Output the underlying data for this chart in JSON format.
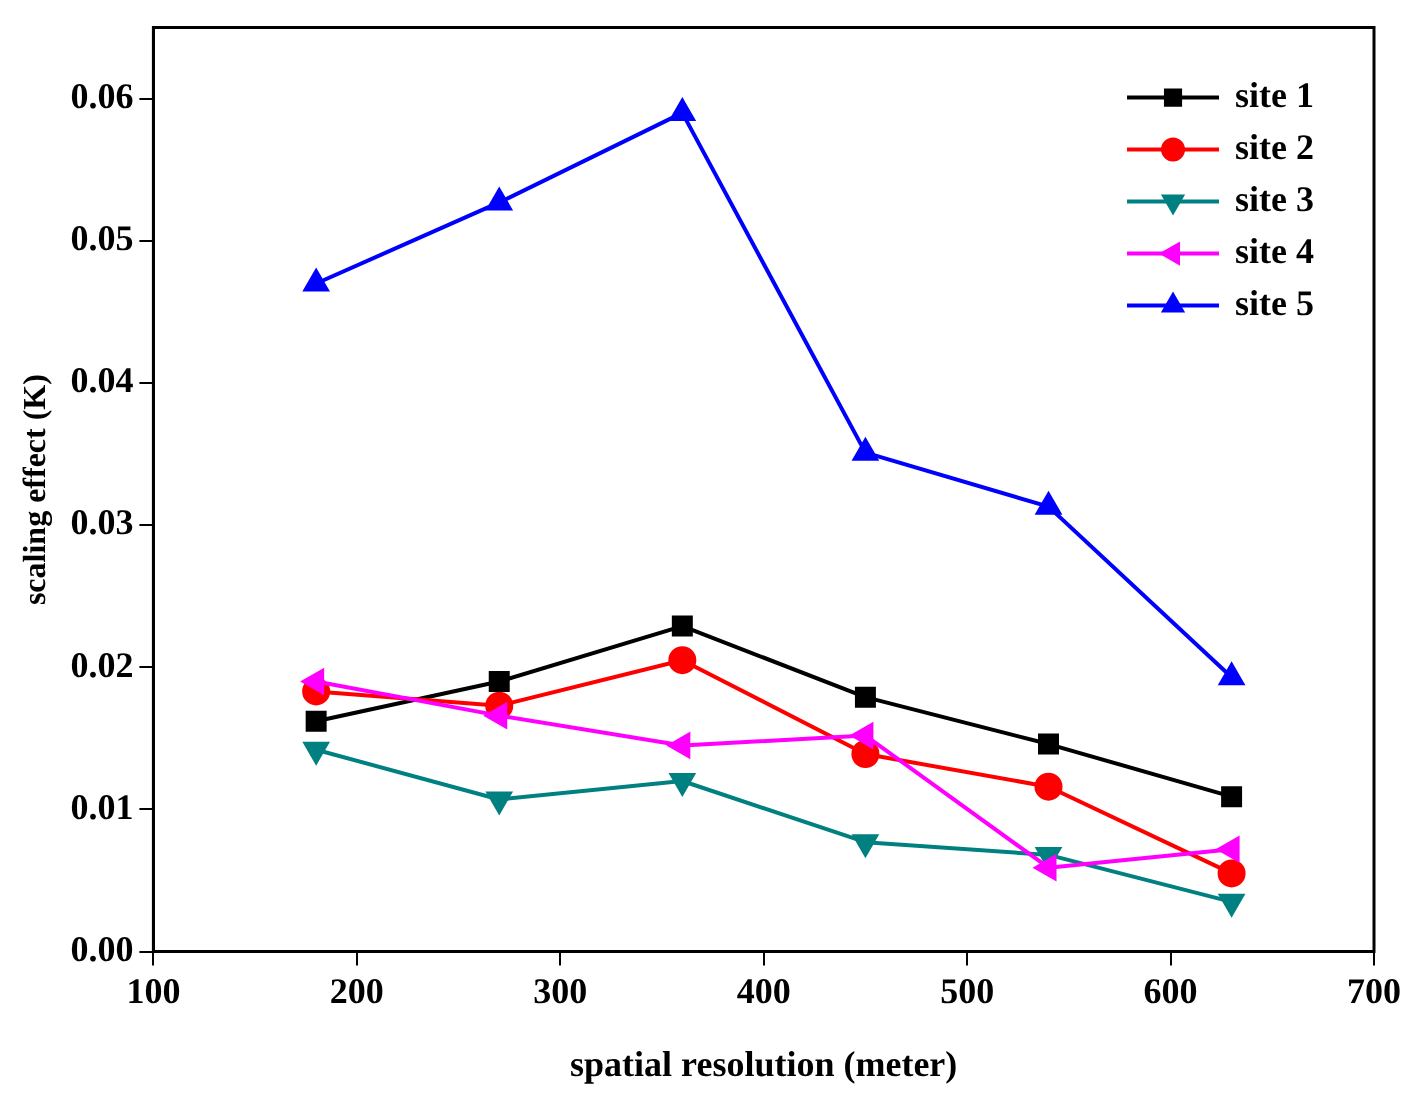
{
  "chart_data": {
    "type": "line",
    "xlabel": "spatial resolution (meter)",
    "ylabel": "scaling effect (K)",
    "x": [
      180,
      270,
      360,
      450,
      540,
      630
    ],
    "series": [
      {
        "name": "site 1",
        "color": "#000000",
        "marker": "square",
        "values": [
          0.0162,
          0.019,
          0.0229,
          0.0179,
          0.0146,
          0.0109
        ]
      },
      {
        "name": "site 2",
        "color": "#ff0000",
        "marker": "circle",
        "values": [
          0.0183,
          0.0173,
          0.0205,
          0.0139,
          0.0116,
          0.0055
        ]
      },
      {
        "name": "site 3",
        "color": "#008080",
        "marker": "triangle-down",
        "values": [
          0.0142,
          0.0107,
          0.012,
          0.0077,
          0.0068,
          0.0035
        ]
      },
      {
        "name": "site 4",
        "color": "#ff00ff",
        "marker": "triangle-left",
        "values": [
          0.019,
          0.0166,
          0.0145,
          0.0152,
          0.0059,
          0.0072
        ]
      },
      {
        "name": "site 5",
        "color": "#0000ff",
        "marker": "triangle",
        "values": [
          0.047,
          0.0527,
          0.059,
          0.0351,
          0.0313,
          0.0193
        ]
      }
    ],
    "xlim": [
      100,
      700
    ],
    "xticks": [
      100,
      200,
      300,
      400,
      500,
      600,
      700
    ],
    "ylim": [
      0,
      0.065
    ],
    "yticks": [
      {
        "value": 0,
        "label": "0.00"
      },
      {
        "value": 0.01,
        "label": "0.01"
      },
      {
        "value": 0.02,
        "label": "0.02"
      },
      {
        "value": 0.03,
        "label": "0.03"
      },
      {
        "value": 0.04,
        "label": "0.04"
      },
      {
        "value": 0.05,
        "label": "0.05"
      },
      {
        "value": 0.06,
        "label": "0.06"
      }
    ],
    "grid": false,
    "legend": "top right",
    "line_style": "solid"
  }
}
